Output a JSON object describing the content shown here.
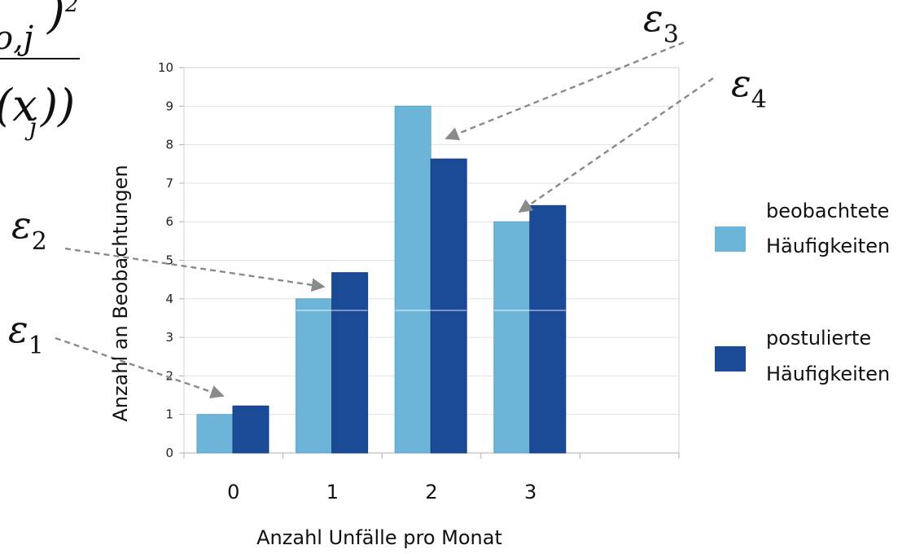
{
  "chart_data": {
    "type": "bar",
    "categories": [
      "0",
      "1",
      "2",
      "3",
      ""
    ],
    "series": [
      {
        "name": "beobachtete Häufigkeiten",
        "values": [
          1,
          4,
          9,
          6,
          null
        ],
        "color": "#6cb4d8"
      },
      {
        "name": "postulierte Häufigkeiten",
        "values": [
          1.22,
          4.68,
          7.63,
          6.42,
          null
        ],
        "color": "#1b4b96"
      }
    ],
    "xlabel": "Anzahl Unfälle pro Monat",
    "ylabel": "Anzahl an Beobachtungen",
    "ylim": [
      0,
      10
    ],
    "yticks": [
      "0",
      "1",
      "2",
      "3",
      "4",
      "5",
      "6",
      "7",
      "8",
      "9",
      "10"
    ],
    "grid": true,
    "legend_position": "right",
    "legend": [
      {
        "line1": "beobachtete",
        "line2": "Häufigkeiten"
      },
      {
        "line1": "postulierte",
        "line2": "Häufigkeiten"
      }
    ],
    "annotations": [
      {
        "symbol": "ε",
        "subscript": "1",
        "target_category": "0"
      },
      {
        "symbol": "ε",
        "subscript": "2",
        "target_category": "1"
      },
      {
        "symbol": "ε",
        "subscript": "3",
        "target_category": "2"
      },
      {
        "symbol": "ε",
        "subscript": "4",
        "target_category": "3"
      }
    ]
  },
  "formula_fragment": {
    "numerator_sub": "o,j",
    "numerator_exp": "2",
    "denominator_open": "(x",
    "denominator_sub": "j",
    "denominator_close": "))"
  }
}
